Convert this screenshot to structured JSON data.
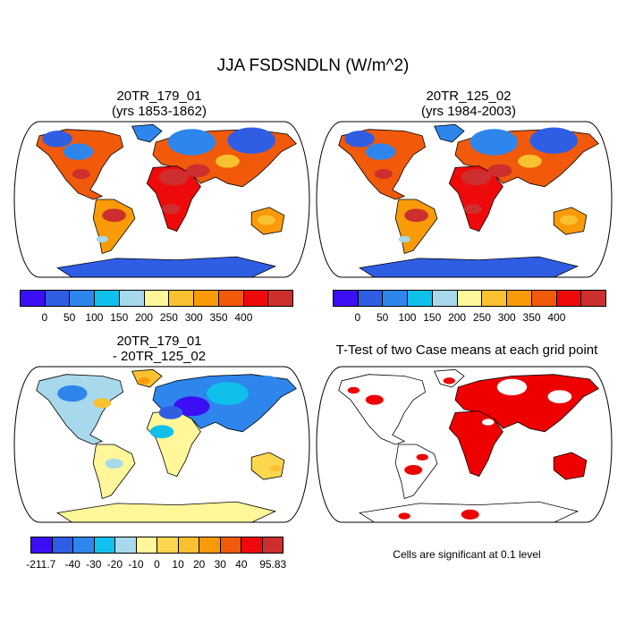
{
  "figure": {
    "title": "JJA FSDSNDLN (W/m^2)",
    "note": "Cells are significant at 0.1 level"
  },
  "colors": {
    "ocean": "#ffffff",
    "land_outline": "#000000",
    "significant": "#ee0000"
  },
  "chart_data": [
    {
      "type": "heatmap",
      "title": "20TR_179_01",
      "subtitle": "(yrs 1853-1862)",
      "projection": "Robinson",
      "colorbar": {
        "colors": [
          "#3b0ef5",
          "#2f5ee5",
          "#2e86ec",
          "#10c0ec",
          "#a8d8ec",
          "#fff79a",
          "#f9c130",
          "#f99a08",
          "#f15a0a",
          "#ee0a0a",
          "#cd2e2e"
        ],
        "tick_labels": [
          "0",
          "50",
          "100",
          "150",
          "200",
          "250",
          "300",
          "350",
          "400"
        ],
        "range": [
          0,
          400
        ]
      }
    },
    {
      "type": "heatmap",
      "title": "20TR_125_02",
      "subtitle": "(yrs 1984-2003)",
      "projection": "Robinson",
      "colorbar": {
        "colors": [
          "#3b0ef5",
          "#2f5ee5",
          "#2e86ec",
          "#10c0ec",
          "#a8d8ec",
          "#fff79a",
          "#f9c130",
          "#f99a08",
          "#f15a0a",
          "#ee0a0a",
          "#cd2e2e"
        ],
        "tick_labels": [
          "0",
          "50",
          "100",
          "150",
          "200",
          "250",
          "300",
          "350",
          "400"
        ],
        "range": [
          0,
          400
        ]
      }
    },
    {
      "type": "heatmap",
      "title": "20TR_179_01",
      "subtitle": "- 20TR_125_02",
      "projection": "Robinson",
      "colorbar": {
        "colors": [
          "#3b0ef5",
          "#2f5ee5",
          "#2e86ec",
          "#10c0ec",
          "#a8d8ec",
          "#fff79a",
          "#fbd64f",
          "#f9c130",
          "#f99a08",
          "#f15a0a",
          "#ee0a0a",
          "#cd2e2e"
        ],
        "tick_labels": [
          "-211.7",
          "-40",
          "-30",
          "-20",
          "-10",
          "0",
          "10",
          "20",
          "30",
          "40",
          "95.83"
        ],
        "range": [
          -211.7,
          95.83
        ]
      }
    },
    {
      "type": "heatmap",
      "title": "T-Test of two Case means at each grid point",
      "projection": "Robinson"
    }
  ]
}
